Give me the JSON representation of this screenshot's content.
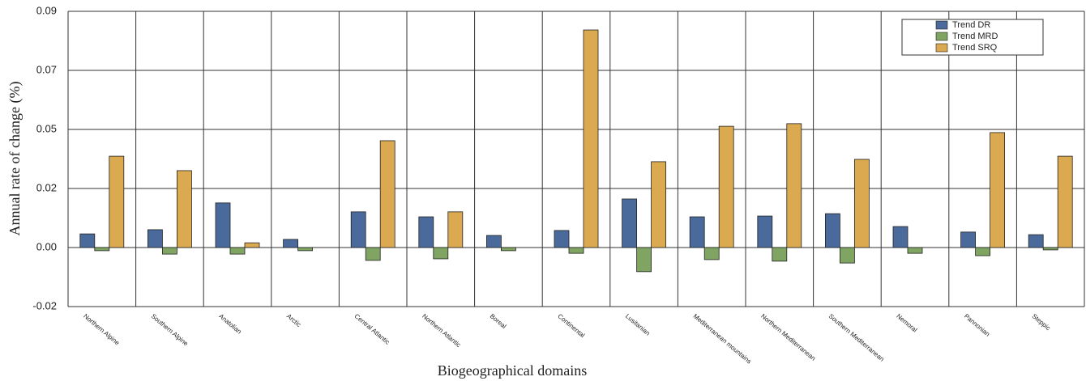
{
  "chart_data": {
    "type": "bar",
    "x_label": "Biogeographical domains",
    "y_label": "Annual rate of change (%)",
    "categories": [
      "Northern Alpine",
      "Southern Alpine",
      "Anatolian",
      "Arctic",
      "Central Atlantic",
      "Northern Atlantic",
      "Boreal",
      "Continental",
      "Lusitanian",
      "Mediterranean mountains",
      "Northern Mediterranean",
      "Southern Mediterranean",
      "Nemoral",
      "Pannonian",
      "Steppic"
    ],
    "series": [
      {
        "name": "Trend DR",
        "color": "#4a6a9c",
        "values": [
          0.0052,
          0.0068,
          0.017,
          0.0031,
          0.0136,
          0.0117,
          0.0046,
          0.0065,
          0.0185,
          0.0117,
          0.012,
          0.0129,
          0.008,
          0.0059,
          0.0049
        ]
      },
      {
        "name": "Trend MRD",
        "color": "#80a461",
        "values": [
          -0.0012,
          -0.0025,
          -0.0025,
          -0.0012,
          -0.0049,
          -0.0043,
          -0.0012,
          -0.0022,
          -0.0092,
          -0.0046,
          -0.0052,
          -0.0059,
          -0.0022,
          -0.0031,
          -0.0009
        ]
      },
      {
        "name": "Trend SRQ",
        "color": "#dba94f",
        "values": [
          0.0348,
          0.0293,
          0.0018,
          0,
          0.0407,
          0.0136,
          0,
          0.0829,
          0.0327,
          0.0462,
          0.0472,
          0.0336,
          0,
          0.0438,
          0.0348
        ]
      }
    ],
    "ylim": [
      -0.0225,
      0.09
    ],
    "yticks": [
      {
        "value": -0.0225,
        "label": "-0.02"
      },
      {
        "value": 0,
        "label": "0.00"
      },
      {
        "value": 0.0225,
        "label": "0.02"
      },
      {
        "value": 0.045,
        "label": "0.05"
      },
      {
        "value": 0.0675,
        "label": "0.07"
      },
      {
        "value": 0.09,
        "label": "0.09"
      }
    ],
    "grid": true,
    "legend": "top-right"
  }
}
